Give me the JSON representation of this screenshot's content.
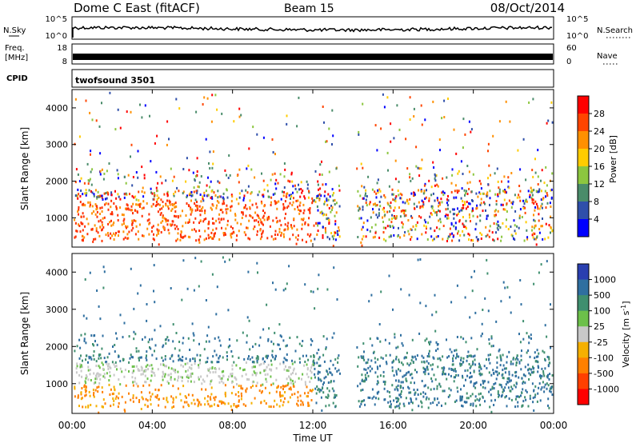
{
  "header": {
    "title": "Dome C East (fitACF)",
    "beam": "Beam 15",
    "date": "08/Oct/2014"
  },
  "panels": {
    "noise": {
      "left_label": "N.Sky",
      "right_label": "N.Search",
      "left_ticks": [
        "10^5",
        "10^0"
      ],
      "right_ticks": [
        "10^5",
        "10^0"
      ]
    },
    "freq": {
      "left_label": "Freq.",
      "left_unit": "[MHz]",
      "right_label": "Nave",
      "left_ticks": [
        "18",
        "8"
      ],
      "right_ticks": [
        "60",
        "0"
      ]
    },
    "cpid": {
      "label": "CPID",
      "value": "twofsound 3501"
    }
  },
  "chart_data": [
    {
      "type": "heatmap",
      "quantity": "Power",
      "ylabel": "Slant Range [km]",
      "xlabel": "Time UT",
      "ylim": [
        200,
        4500
      ],
      "yticks": [
        "1000",
        "2000",
        "3000",
        "4000"
      ],
      "x_ticks": [
        "00:00",
        "04:00",
        "08:00",
        "12:00",
        "16:00",
        "20:00",
        "00:00"
      ],
      "colorbar": {
        "label": "Power [dB]",
        "ticks": [
          "4",
          "8",
          "12",
          "16",
          "20",
          "24",
          "28"
        ],
        "colors": [
          "#0000ff",
          "#2f4faa",
          "#4a8c6a",
          "#8cc63f",
          "#ffcc00",
          "#ff9000",
          "#ff4500",
          "#ff0000"
        ]
      }
    },
    {
      "type": "heatmap",
      "quantity": "Velocity",
      "ylabel": "Slant Range [km]",
      "xlabel": "Time UT",
      "ylim": [
        200,
        4500
      ],
      "yticks": [
        "1000",
        "2000",
        "3000",
        "4000"
      ],
      "x_ticks": [
        "00:00",
        "04:00",
        "08:00",
        "12:00",
        "16:00",
        "20:00",
        "00:00"
      ],
      "colorbar": {
        "label": "Velocity [m s",
        "label_sup": "-1",
        "label_end": "]",
        "ticks": [
          "1000",
          "500",
          "100",
          "25",
          "-25",
          "-100",
          "-500",
          "-1000"
        ],
        "colors": [
          "#2a3fb0",
          "#2f6fa0",
          "#3f8f6f",
          "#6cc04a",
          "#c8c8c8",
          "#f5b000",
          "#ff8000",
          "#ff4000",
          "#ff0000"
        ]
      }
    }
  ]
}
